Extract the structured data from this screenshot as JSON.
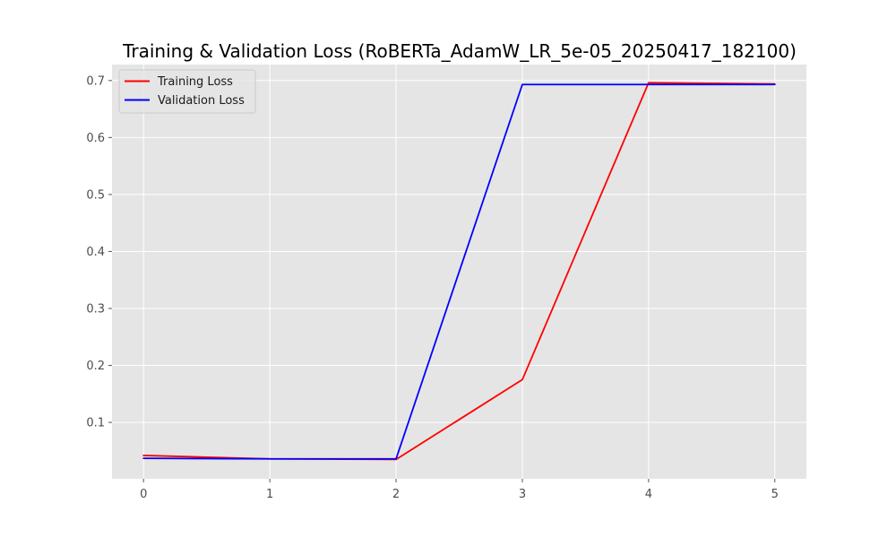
{
  "chart_data": {
    "type": "line",
    "title": "Training & Validation Loss (RoBERTa_AdamW_LR_5e-05_20250417_182100)",
    "xlabel": "",
    "ylabel": "",
    "x": [
      0,
      1,
      2,
      3,
      4,
      5
    ],
    "x_ticks": [
      "0",
      "1",
      "2",
      "3",
      "4",
      "5"
    ],
    "y_ticks": [
      "0.1",
      "0.2",
      "0.3",
      "0.4",
      "0.5",
      "0.6",
      "0.7"
    ],
    "xlim": [
      -0.25,
      5.25
    ],
    "ylim": [
      0.001,
      0.728
    ],
    "grid": true,
    "legend_position": "top-left",
    "series": [
      {
        "name": "Training Loss",
        "color": "#ff0000",
        "values": [
          0.042,
          0.036,
          0.035,
          0.175,
          0.696,
          0.694
        ]
      },
      {
        "name": "Validation Loss",
        "color": "#0000ff",
        "values": [
          0.037,
          0.036,
          0.036,
          0.693,
          0.693,
          0.693
        ]
      }
    ]
  },
  "style": {
    "plot_background": "#e5e5e5",
    "grid_color": "#ffffff",
    "tick_color": "#555555"
  }
}
